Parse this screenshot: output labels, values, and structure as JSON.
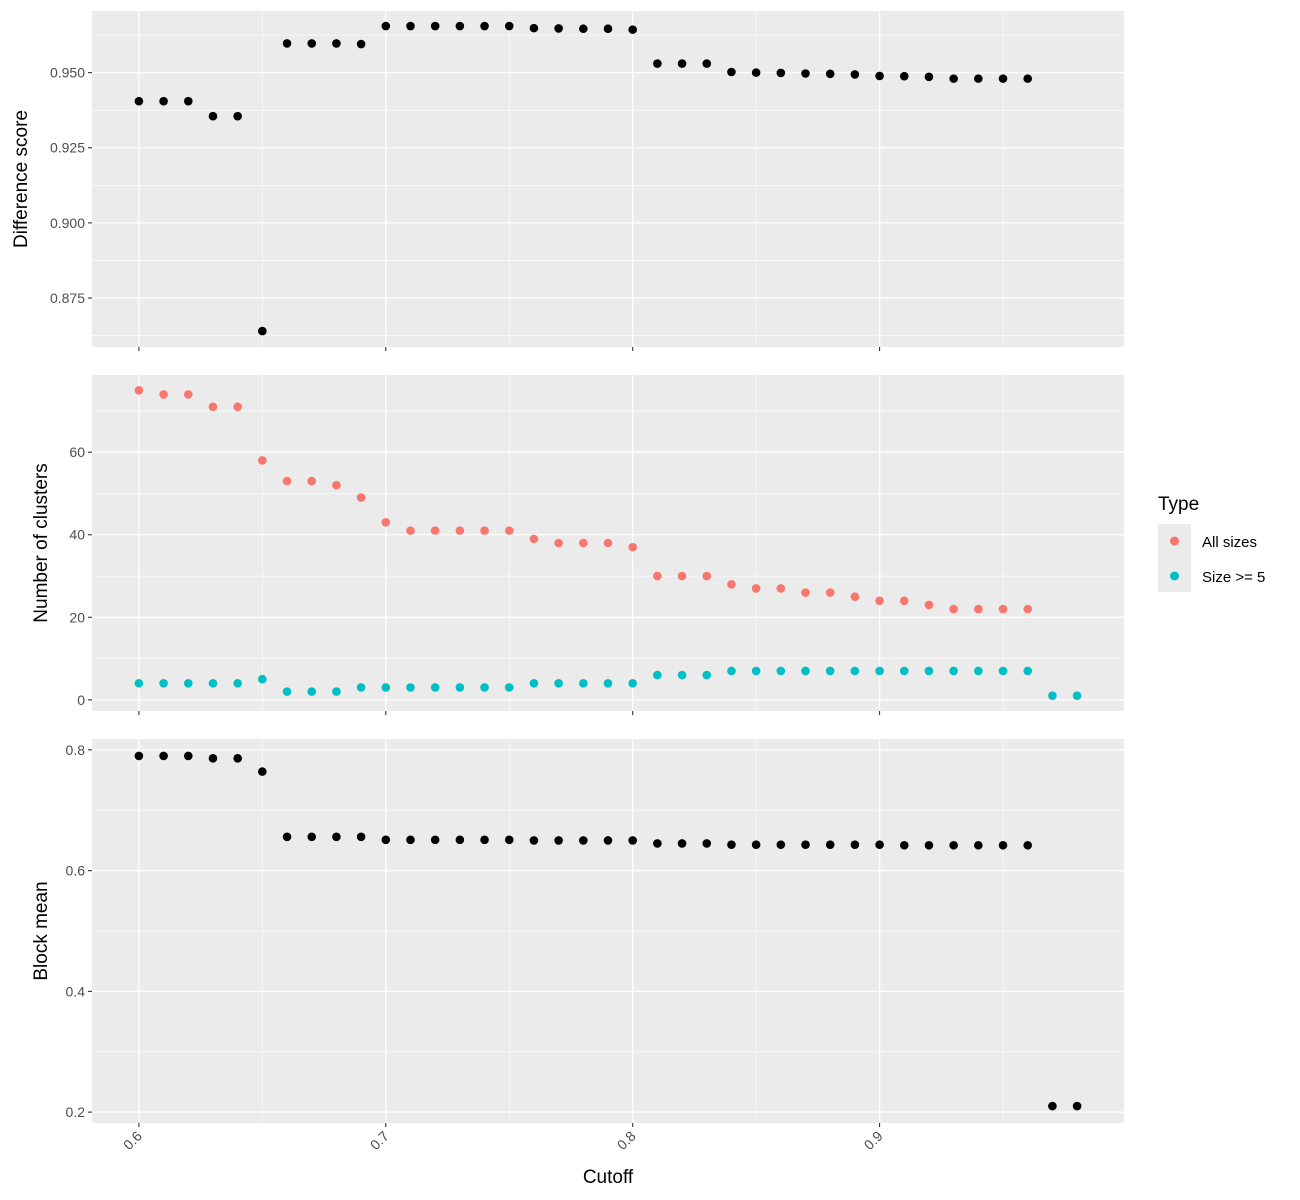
{
  "chart_data": {
    "type": "scatter",
    "shared_x": {
      "label": "Cutoff",
      "range": [
        0.581,
        0.999
      ],
      "ticks": [
        0.6,
        0.7,
        0.8,
        0.9
      ],
      "tick_labels": [
        "0.6",
        "0.7",
        "0.8",
        "0.9"
      ]
    },
    "panels": [
      {
        "ylabel": "Difference score",
        "ylim": [
          0.8587,
          0.9705
        ],
        "yticks": [
          0.875,
          0.9,
          0.925,
          0.95
        ],
        "ytick_labels": [
          "0.875",
          "0.900",
          "0.925",
          "0.950"
        ],
        "series": [
          {
            "color": "#000000",
            "x": [
              0.6,
              0.61,
              0.62,
              0.63,
              0.64,
              0.65,
              0.66,
              0.67,
              0.68,
              0.69,
              0.7,
              0.71,
              0.72,
              0.73,
              0.74,
              0.75,
              0.76,
              0.77,
              0.78,
              0.79,
              0.8,
              0.81,
              0.82,
              0.83,
              0.84,
              0.85,
              0.86,
              0.87,
              0.88,
              0.89,
              0.9,
              0.91,
              0.92,
              0.93,
              0.94,
              0.95,
              0.96
            ],
            "y": [
              0.9405,
              0.9405,
              0.9405,
              0.9355,
              0.9355,
              0.864,
              0.9597,
              0.9597,
              0.9597,
              0.9595,
              0.9655,
              0.9655,
              0.9655,
              0.9655,
              0.9655,
              0.9655,
              0.9648,
              0.9647,
              0.9646,
              0.9646,
              0.9643,
              0.953,
              0.953,
              0.953,
              0.9502,
              0.95,
              0.9499,
              0.9497,
              0.9496,
              0.9494,
              0.9489,
              0.9488,
              0.9486,
              0.948,
              0.948,
              0.948,
              0.948
            ]
          }
        ]
      },
      {
        "ylabel": "Number of clusters",
        "ylim": [
          -2.7,
          78.7
        ],
        "yticks": [
          0,
          20,
          40,
          60
        ],
        "ytick_labels": [
          "0",
          "20",
          "40",
          "60"
        ],
        "series": [
          {
            "name": "All sizes",
            "color": "#F8766D",
            "x": [
              0.6,
              0.61,
              0.62,
              0.63,
              0.64,
              0.65,
              0.66,
              0.67,
              0.68,
              0.69,
              0.7,
              0.71,
              0.72,
              0.73,
              0.74,
              0.75,
              0.76,
              0.77,
              0.78,
              0.79,
              0.8,
              0.81,
              0.82,
              0.83,
              0.84,
              0.85,
              0.86,
              0.87,
              0.88,
              0.89,
              0.9,
              0.91,
              0.92,
              0.93,
              0.94,
              0.95,
              0.96
            ],
            "y": [
              75,
              74,
              74,
              71,
              71,
              58,
              53,
              53,
              52,
              49,
              43,
              41,
              41,
              41,
              41,
              41,
              39,
              38,
              38,
              38,
              37,
              30,
              30,
              30,
              28,
              27,
              27,
              26,
              26,
              25,
              24,
              24,
              23,
              22,
              22,
              22,
              22
            ]
          },
          {
            "name": "Size >= 5",
            "color": "#00BFC4",
            "x": [
              0.6,
              0.61,
              0.62,
              0.63,
              0.64,
              0.65,
              0.66,
              0.67,
              0.68,
              0.69,
              0.7,
              0.71,
              0.72,
              0.73,
              0.74,
              0.75,
              0.76,
              0.77,
              0.78,
              0.79,
              0.8,
              0.81,
              0.82,
              0.83,
              0.84,
              0.85,
              0.86,
              0.87,
              0.88,
              0.89,
              0.9,
              0.91,
              0.92,
              0.93,
              0.94,
              0.95,
              0.96,
              0.97,
              0.98
            ],
            "y": [
              4,
              4,
              4,
              4,
              4,
              5,
              2,
              2,
              2,
              3,
              3,
              3,
              3,
              3,
              3,
              3,
              4,
              4,
              4,
              4,
              4,
              6,
              6,
              6,
              7,
              7,
              7,
              7,
              7,
              7,
              7,
              7,
              7,
              7,
              7,
              7,
              7,
              1,
              1
            ]
          }
        ]
      },
      {
        "ylabel": "Block mean",
        "ylim": [
          0.182,
          0.818
        ],
        "yticks": [
          0.2,
          0.4,
          0.6,
          0.8
        ],
        "ytick_labels": [
          "0.2",
          "0.4",
          "0.6",
          "0.8"
        ],
        "series": [
          {
            "color": "#000000",
            "x": [
              0.6,
              0.61,
              0.62,
              0.63,
              0.64,
              0.65,
              0.66,
              0.67,
              0.68,
              0.69,
              0.7,
              0.71,
              0.72,
              0.73,
              0.74,
              0.75,
              0.76,
              0.77,
              0.78,
              0.79,
              0.8,
              0.81,
              0.82,
              0.83,
              0.84,
              0.85,
              0.86,
              0.87,
              0.88,
              0.89,
              0.9,
              0.91,
              0.92,
              0.93,
              0.94,
              0.95,
              0.96,
              0.97,
              0.98
            ],
            "y": [
              0.79,
              0.79,
              0.79,
              0.786,
              0.786,
              0.764,
              0.656,
              0.656,
              0.656,
              0.656,
              0.651,
              0.651,
              0.651,
              0.651,
              0.651,
              0.651,
              0.65,
              0.65,
              0.65,
              0.65,
              0.65,
              0.645,
              0.645,
              0.645,
              0.643,
              0.643,
              0.643,
              0.643,
              0.643,
              0.643,
              0.643,
              0.642,
              0.642,
              0.642,
              0.642,
              0.642,
              0.642,
              0.21,
              0.21
            ]
          }
        ]
      }
    ],
    "legend": {
      "title": "Type",
      "placement": "right",
      "entries": [
        {
          "label": "All sizes",
          "color": "#F8766D"
        },
        {
          "label": "Size >= 5",
          "color": "#00BFC4"
        }
      ]
    },
    "grid": true,
    "colors": {
      "panel_bg": "#EBEBEB",
      "grid": "#FFFFFF",
      "text": "#4D4D4D",
      "tick": "#333333"
    }
  }
}
